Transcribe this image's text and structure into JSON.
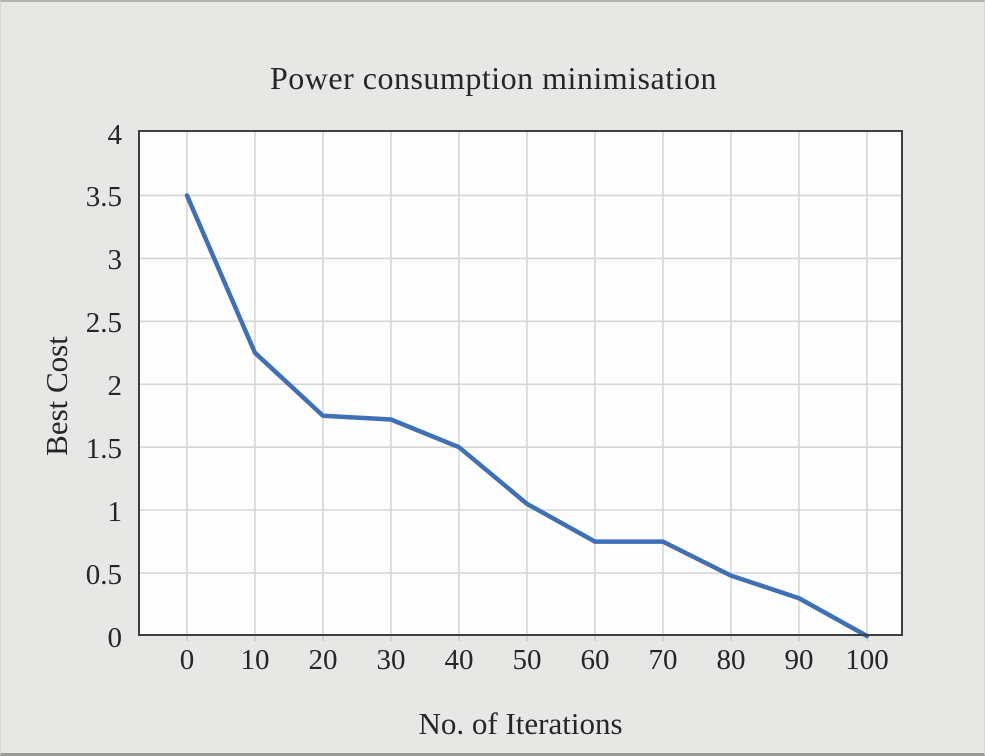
{
  "figure": {
    "background": "#e7e7e5"
  },
  "chart_data": {
    "type": "line",
    "title": "Power consumption minimisation",
    "xlabel": "No. of Iterations",
    "ylabel": "Best Cost",
    "x": [
      0,
      10,
      20,
      30,
      40,
      50,
      60,
      70,
      80,
      90,
      100
    ],
    "series": [
      {
        "name": "Best Cost",
        "values": [
          3.5,
          2.25,
          1.75,
          1.72,
          1.5,
          1.05,
          0.75,
          0.75,
          0.48,
          0.3,
          0
        ]
      }
    ],
    "x_ticks": [
      "0",
      "10",
      "20",
      "30",
      "40",
      "50",
      "60",
      "70",
      "80",
      "90",
      "100"
    ],
    "y_ticks": [
      "0",
      "0.5",
      "1",
      "1.5",
      "2",
      "2.5",
      "3",
      "3.5",
      "4"
    ],
    "xlim": [
      -7.2,
      105.3
    ],
    "ylim": [
      0,
      4.02
    ],
    "grid": true,
    "legend": false,
    "line_color": "#3e6fb7",
    "line_width": 4.5,
    "grid_color": "#d6d6d6",
    "plot_background": "#fdfdfd",
    "border_color": "#3f3f3f",
    "text_color": "#25252a"
  }
}
